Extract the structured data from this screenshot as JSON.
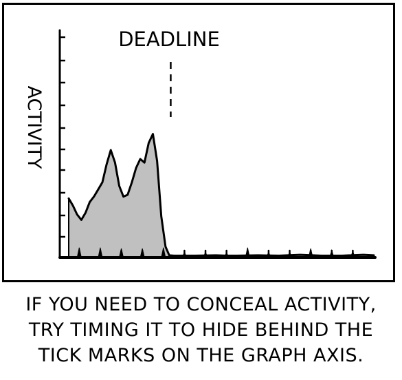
{
  "chart_data": {
    "type": "area",
    "title": "",
    "annotation": "DEADLINE",
    "ylabel": "ACTIVITY",
    "xlabel": "",
    "fill_color": "#c0c0c0",
    "line_color": "#000000",
    "grid": false,
    "legend": "none",
    "x_ticks": [
      1,
      3,
      5,
      7,
      9,
      11,
      13,
      15,
      17,
      19,
      21,
      23,
      25,
      27
    ],
    "deadline_x": 9.5,
    "xlim": [
      0,
      29
    ],
    "ylim": [
      0,
      10
    ],
    "series": [
      {
        "x": [
          0,
          0.4,
          0.8,
          1.2,
          1.6,
          2,
          2.4,
          2.8,
          3.2,
          3.6,
          4,
          4.4,
          4.8,
          5.2,
          5.6,
          6,
          6.4,
          6.8,
          7.2,
          7.6,
          8,
          8.4,
          8.8,
          9.2,
          9.5,
          9.55,
          10,
          12,
          14,
          15,
          16,
          18,
          20,
          22,
          24,
          26,
          28,
          29
        ],
        "y": [
          3.3,
          2.9,
          2.4,
          2.1,
          2.5,
          3.1,
          3.4,
          3.8,
          4.2,
          5.2,
          6,
          5.3,
          4,
          3.4,
          3.5,
          4.2,
          5,
          5.5,
          5.3,
          6.4,
          6.9,
          5.4,
          2.3,
          0.6,
          0.2,
          0.12,
          0.1,
          0.1,
          0.12,
          0.1,
          0.1,
          0.12,
          0.1,
          0.15,
          0.1,
          0.1,
          0.15,
          0.12
        ]
      }
    ],
    "hidden_spikes": [
      {
        "x": 1,
        "y": 0.55
      },
      {
        "x": 3,
        "y": 0.55
      },
      {
        "x": 5,
        "y": 0.5
      },
      {
        "x": 7,
        "y": 0.5
      },
      {
        "x": 9,
        "y": 0.55
      },
      {
        "x": 11,
        "y": 0.3
      },
      {
        "x": 13,
        "y": 0.3
      },
      {
        "x": 15,
        "y": 0.28
      },
      {
        "x": 17,
        "y": 0.55
      },
      {
        "x": 19,
        "y": 0.3
      },
      {
        "x": 21,
        "y": 0.3
      },
      {
        "x": 23,
        "y": 0.5
      },
      {
        "x": 25,
        "y": 0.4
      },
      {
        "x": 27,
        "y": 0.35
      }
    ]
  },
  "caption": {
    "line1": "IF YOU NEED TO CONCEAL ACTIVITY,",
    "line2": "TRY TIMING IT TO HIDE BEHIND THE",
    "line3": "TICK MARKS ON THE GRAPH AXIS."
  }
}
